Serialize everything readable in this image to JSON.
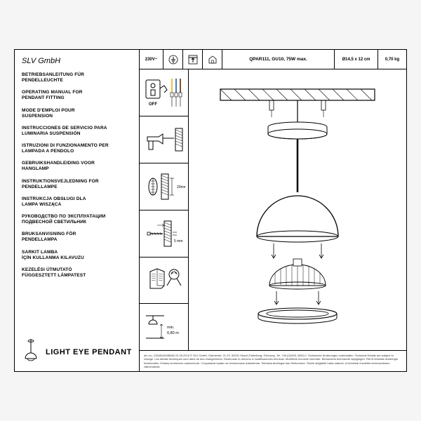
{
  "company": "SLV GmbH",
  "languages": [
    "BETRIEBSANLEITUNG FÜR\nPENDELLEUCHTE",
    "OPERATING MANUAL FOR\nPENDANT FITTING",
    "MODE D'EMPLOI POUR\nSUSPENSION",
    "INSTRUCCIONES DE SERVICIO PARA\nLUMINARIA SUSPENSIÓN",
    "ISTRUZIONI DI FUNZIONAMENTO PER\nLAMPADA A PENDOLO",
    "GEBRUIKSHANDLEIDING VOOR\nHANGLAMP",
    "INSTRUKTIONSVEJLEDNING FOR\nPENDELLAMPE",
    "INSTRUKCJA OBSŁUGI DLA\nLAMPA WISZĄCA",
    "РУКОВОДСТВО ПО ЭКСПЛУАТАЦИИ\nПОДВЕСНОЙ СВЕТИЛЬНИК",
    "BRUKSANVISNING FÖR\nPENDELLAMPA",
    "SARKIT LAMBA\nİÇİN KULLANMA KILAVUZU",
    "KEZELÉSI ÚTMUTATÓ\nFÜGGESZTETT LÁMPATEST"
  ],
  "product_name": "LIGHT EYE PENDANT",
  "specs": {
    "voltage": "230V~",
    "lamp": "QPAR111, GU10, 75W max.",
    "dims": "Ø14,5  x 12 cm",
    "weight": "0,70 kg"
  },
  "instr_labels": {
    "off": "OFF",
    "dist1": "20mm",
    "dist2": "5 mm",
    "clearance": "min.\n0,80 m"
  },
  "footnote": "art.-no. 133481/83/85/86 22.05.2015 © SLV GmbH, Daimlerstr. 21-23, 52531 Übach-Palenberg, Germany, Tel. +49 (0)2451 4833-0. Technische Änderungen vorbehalten. Technical Details are subject to change. Les détails techniques sont dans de des changements. Reservado el derecho a modificaciones técnicas. Modifiche tecniche riservate. Behoudens technische wijzigingen. Ret til tekniske ændringer forbeholdes. Zmiany techniczne zastrzeżone. Сохраняем право на технические изменения. Tekniska ändringar kan förekomma. Teknik değişiklik hakkı saklıdır. A technikai részletek természetesen változhatnak.",
  "colors": {
    "line": "#000000",
    "bg": "#ffffff"
  }
}
